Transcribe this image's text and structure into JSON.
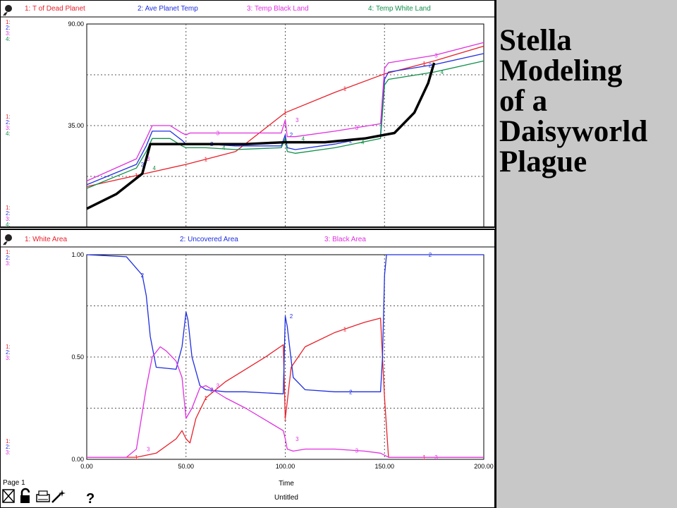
{
  "side_title": [
    "Stella",
    "Modeling",
    "of a",
    "Daisyworld",
    "Plague"
  ],
  "footer": {
    "page": "Page 1",
    "help": "?",
    "xlabel": "Time",
    "file": "Untitled"
  },
  "colors": {
    "series1": "#e8202a",
    "series2": "#1f2fe0",
    "series3": "#e030e0",
    "series4": "#10904a",
    "annotation": "#000000"
  },
  "icons": [
    "pin-icon",
    "stop-icon",
    "lock-icon",
    "print-icon",
    "wand-icon",
    "help-icon"
  ],
  "chart_data": [
    {
      "type": "line",
      "legend": [
        "1: T of Dead Planet",
        "2: Ave Planet Temp",
        "3: Temp Black Land",
        "4: Temp White Land"
      ],
      "yticks": [
        "90.00",
        "35.00"
      ],
      "ylim": [
        -20,
        90
      ],
      "xlim": [
        0,
        200
      ],
      "series": [
        {
          "name": "1: T of Dead Planet",
          "x": [
            0,
            25,
            50,
            75,
            100,
            125,
            150,
            175,
            200
          ],
          "y": [
            2,
            8,
            14,
            21,
            42,
            53,
            63,
            70,
            78
          ]
        },
        {
          "name": "2: Ave Planet Temp",
          "x": [
            0,
            25,
            30,
            33,
            42,
            48,
            50,
            52,
            60,
            75,
            98,
            100,
            101,
            105,
            125,
            148,
            150,
            152,
            175,
            200
          ],
          "y": [
            3,
            14,
            24,
            32,
            32,
            27,
            25,
            25,
            25,
            24,
            24,
            30,
            23,
            22,
            25,
            30,
            60,
            64,
            68,
            74
          ]
        },
        {
          "name": "3: Temp Black Land",
          "x": [
            0,
            25,
            30,
            33,
            42,
            48,
            50,
            52,
            60,
            75,
            98,
            100,
            101,
            105,
            125,
            148,
            150,
            152,
            175,
            200
          ],
          "y": [
            5,
            17,
            28,
            35,
            35,
            31,
            30,
            31,
            31,
            31,
            31,
            38,
            29,
            29,
            32,
            36,
            66,
            69,
            73,
            80
          ]
        },
        {
          "name": "4: Temp White Land",
          "x": [
            0,
            25,
            30,
            33,
            42,
            48,
            50,
            52,
            60,
            75,
            98,
            100,
            101,
            105,
            125,
            148,
            150,
            152,
            175,
            200
          ],
          "y": [
            1,
            12,
            21,
            28,
            28,
            24,
            23,
            23,
            23,
            22,
            23,
            28,
            21,
            20,
            23,
            28,
            57,
            60,
            64,
            70
          ]
        },
        {
          "x": [
            0,
            15,
            28,
            32,
            40,
            60,
            80,
            100,
            120,
            140,
            155,
            165,
            172,
            175
          ],
          "y": [
            -10,
            -2,
            9,
            25,
            25,
            25,
            25,
            26,
            26,
            28,
            31,
            42,
            58,
            69
          ]
        }
      ]
    },
    {
      "type": "line",
      "legend": [
        "1: White Area",
        "2: Uncovered Area",
        "3: Black Area"
      ],
      "yticks": [
        "1.00",
        "0.50",
        "0.00"
      ],
      "xticks": [
        "0.00",
        "50.00",
        "100.00",
        "150.00",
        "200.00"
      ],
      "ylim": [
        0,
        1
      ],
      "xlim": [
        0,
        200
      ],
      "xlabel": "Time",
      "series": [
        {
          "name": "1: White Area",
          "x": [
            0,
            25,
            35,
            45,
            48,
            50,
            52,
            55,
            60,
            70,
            80,
            90,
            99,
            100,
            101,
            103,
            110,
            125,
            140,
            148,
            150,
            152,
            200
          ],
          "y": [
            0.01,
            0.01,
            0.03,
            0.1,
            0.14,
            0.1,
            0.08,
            0.2,
            0.3,
            0.38,
            0.44,
            0.5,
            0.56,
            0.2,
            0.28,
            0.45,
            0.55,
            0.62,
            0.67,
            0.69,
            0.3,
            0.01,
            0.01
          ]
        },
        {
          "name": "2: Uncovered Area",
          "x": [
            0,
            20,
            28,
            30,
            32,
            35,
            45,
            48,
            50,
            51,
            53,
            57,
            60,
            70,
            80,
            99,
            100,
            101,
            104,
            110,
            125,
            148,
            149,
            150,
            151,
            152,
            200
          ],
          "y": [
            1.0,
            0.99,
            0.9,
            0.8,
            0.6,
            0.45,
            0.44,
            0.55,
            0.72,
            0.68,
            0.5,
            0.36,
            0.34,
            0.33,
            0.33,
            0.32,
            0.7,
            0.65,
            0.4,
            0.34,
            0.33,
            0.33,
            0.5,
            0.9,
            1.0,
            1.0,
            1.0
          ]
        },
        {
          "name": "3: Black Area",
          "x": [
            0,
            20,
            25,
            30,
            33,
            37,
            40,
            45,
            48,
            50,
            53,
            57,
            60,
            70,
            80,
            99,
            100,
            101,
            104,
            110,
            125,
            140,
            148,
            150,
            152,
            200
          ],
          "y": [
            0.01,
            0.01,
            0.05,
            0.35,
            0.5,
            0.55,
            0.53,
            0.48,
            0.4,
            0.2,
            0.25,
            0.35,
            0.36,
            0.3,
            0.25,
            0.14,
            0.1,
            0.05,
            0.04,
            0.05,
            0.05,
            0.04,
            0.03,
            0.02,
            0.01,
            0.01
          ]
        }
      ]
    }
  ]
}
